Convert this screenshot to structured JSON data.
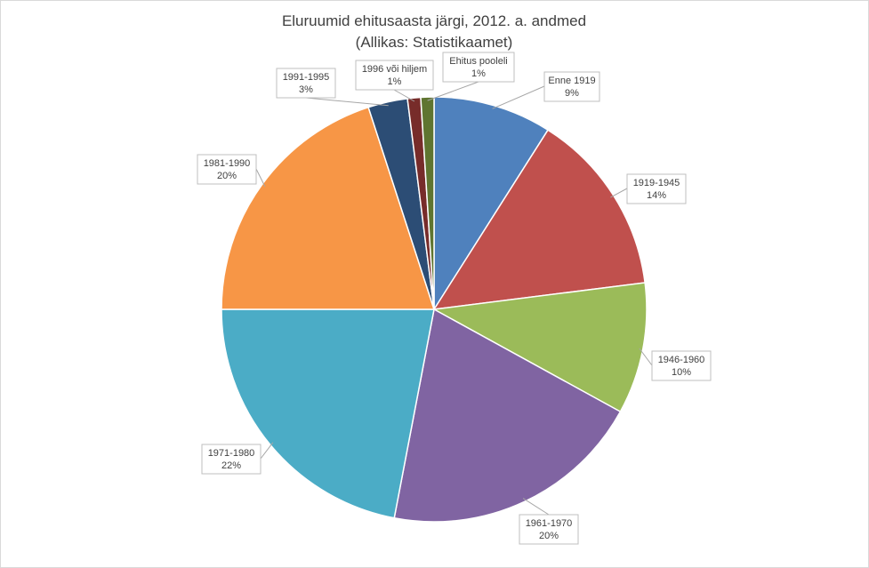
{
  "chart_data": {
    "type": "pie",
    "title": "Eluruumid ehitusaasta järgi, 2012. a. andmed",
    "subtitle": "(Allikas: Statistikaamet)",
    "start_angle_deg": 0,
    "direction": "clockwise",
    "slices": [
      {
        "label": "Enne 1919",
        "value": 9,
        "display": "9%",
        "color": "#4f81bd"
      },
      {
        "label": "1919-1945",
        "value": 14,
        "display": "14%",
        "color": "#c0504d"
      },
      {
        "label": "1946-1960",
        "value": 10,
        "display": "10%",
        "color": "#9bbb59"
      },
      {
        "label": "1961-1970",
        "value": 20,
        "display": "20%",
        "color": "#8064a2"
      },
      {
        "label": "1971-1980",
        "value": 22,
        "display": "22%",
        "color": "#4bacc6"
      },
      {
        "label": "1981-1990",
        "value": 20,
        "display": "20%",
        "color": "#f79646"
      },
      {
        "label": "1991-1995",
        "value": 3,
        "display": "3%",
        "color": "#2c4d75"
      },
      {
        "label": "1996 või hiljem",
        "value": 1,
        "display": "1%",
        "color": "#772c2a"
      },
      {
        "label": "Ehitus pooleli",
        "value": 1,
        "display": "1%",
        "color": "#5f7530"
      }
    ]
  }
}
